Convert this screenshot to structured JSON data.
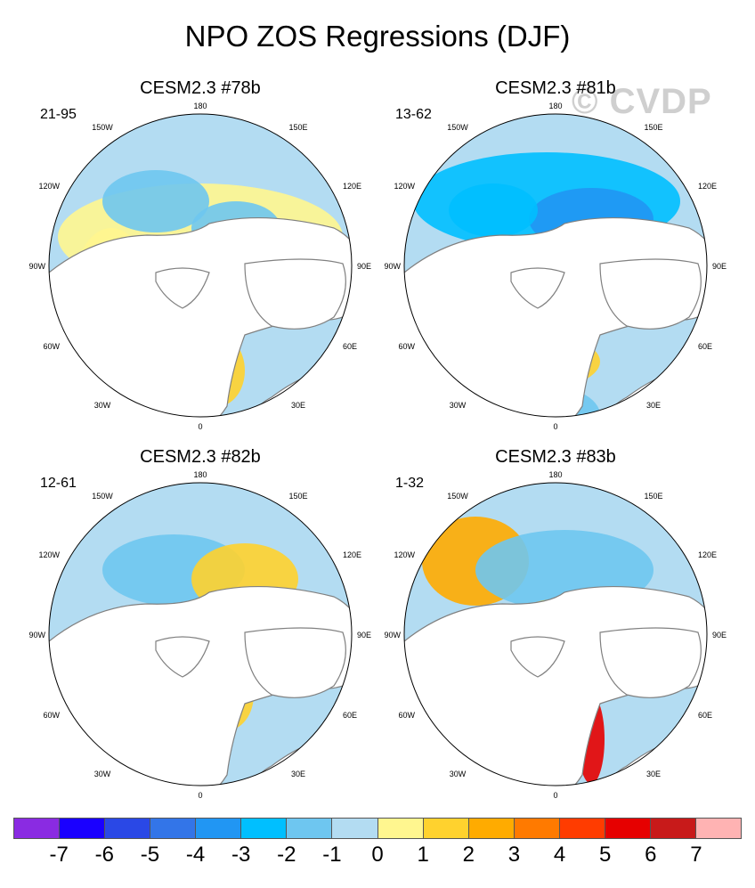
{
  "figure_title": "NPO ZOS Regressions (DJF)",
  "watermark": "© CVDP",
  "panels": [
    {
      "title": "CESM2.3 #78b",
      "range": "21-95"
    },
    {
      "title": "CESM2.3 #81b",
      "range": "13-62"
    },
    {
      "title": "CESM2.3 #82b",
      "range": "12-61"
    },
    {
      "title": "CESM2.3 #83b",
      "range": "1-32"
    }
  ],
  "longitude_labels": {
    "top": "180",
    "top_left": "150W",
    "top_right": "150E",
    "upper_left": "120W",
    "upper_right": "120E",
    "left": "90W",
    "right": "90E",
    "lower_left": "60W",
    "lower_right": "60E",
    "bottom_left": "30W",
    "bottom_right": "30E",
    "bottom": "0"
  },
  "colorbar": {
    "colors": [
      "#8a2be2",
      "#1a00ff",
      "#2a48e6",
      "#3375e8",
      "#2196f3",
      "#00bfff",
      "#6ec6f0",
      "#b3dcf2",
      "#fff68f",
      "#ffd22e",
      "#ffab00",
      "#ff7a00",
      "#ff3c00",
      "#e60000",
      "#c81a1a",
      "#ffb3b3"
    ],
    "tick_labels": [
      "-7",
      "-6",
      "-5",
      "-4",
      "-3",
      "-2",
      "-1",
      "0",
      "1",
      "2",
      "3",
      "4",
      "5",
      "6",
      "7"
    ]
  }
}
